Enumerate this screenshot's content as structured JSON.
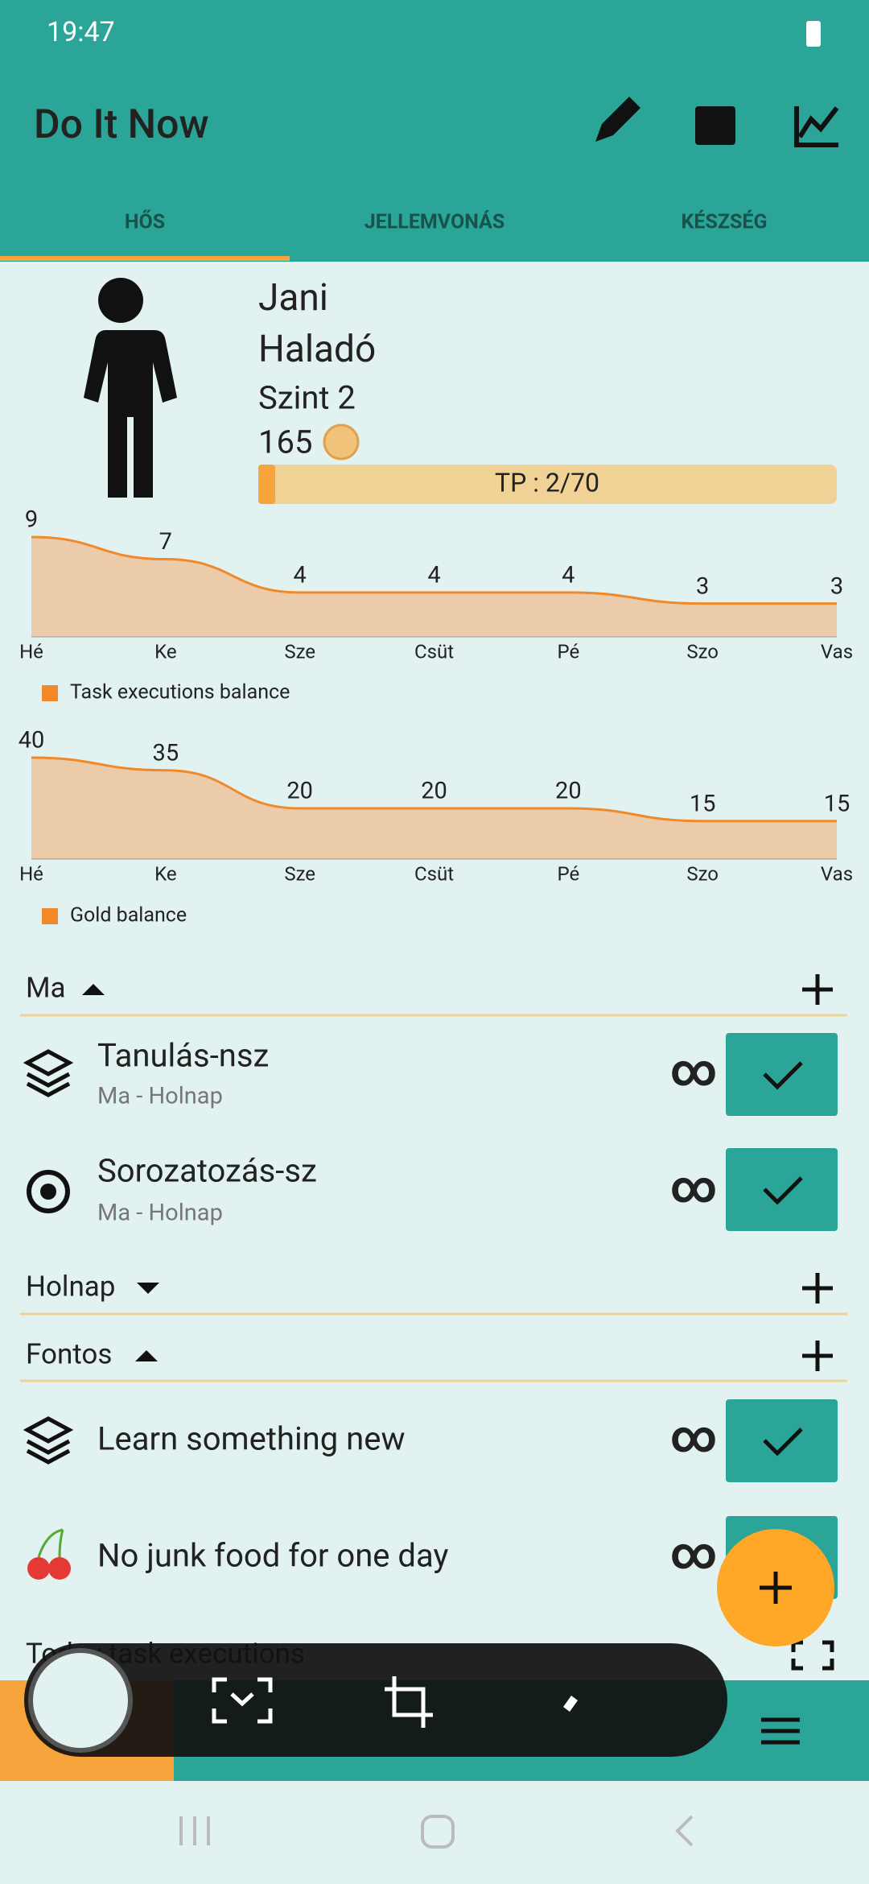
{
  "status_bar": {
    "time": "19:47"
  },
  "app_bar": {
    "title": "Do It Now"
  },
  "tabs": [
    "HŐS",
    "JELLEMVONÁS",
    "KÉSZSÉG"
  ],
  "hero": {
    "name": "Jani",
    "rank": "Haladó",
    "level": "Szint 2",
    "gold": 165,
    "tp_label": "TP : 2/70"
  },
  "charts": [
    {
      "type": "area",
      "categories": [
        "Hé",
        "Ke",
        "Sze",
        "Csüt",
        "Pé",
        "Szo",
        "Vas"
      ],
      "values": [
        9,
        7,
        4,
        4,
        4,
        3,
        3
      ],
      "legend": "Task executions balance",
      "color": "#f0892a"
    },
    {
      "type": "area",
      "categories": [
        "Hé",
        "Ke",
        "Sze",
        "Csüt",
        "Pé",
        "Szo",
        "Vas"
      ],
      "values": [
        40,
        35,
        20,
        20,
        20,
        15,
        15
      ],
      "legend": "Gold balance",
      "color": "#f0892a"
    }
  ],
  "sections": [
    {
      "title": "Ma",
      "tasks": [
        {
          "title": "Tanulás-nsz",
          "subtitle": "Ma - Holnap",
          "repeat": "∞"
        },
        {
          "title": "Sorozatozás-sz",
          "subtitle": "Ma - Holnap",
          "repeat": "∞"
        }
      ]
    },
    {
      "title": "Holnap"
    },
    {
      "title": "Fontos",
      "tasks": [
        {
          "title": "Learn something new",
          "repeat": "∞"
        },
        {
          "title": "No junk food for one day",
          "repeat": "∞"
        }
      ]
    },
    {
      "title": "Today task executions"
    }
  ]
}
